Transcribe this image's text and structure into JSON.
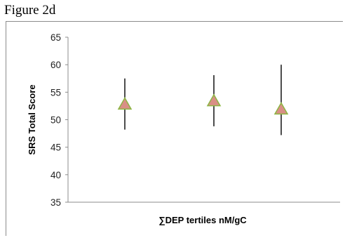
{
  "figure_label": "Figure 2d",
  "chart_data": {
    "type": "scatter",
    "title": "",
    "xlabel": "∑DEP tertiles nM/gC",
    "ylabel": "SRS Total Score",
    "ylim": [
      35,
      65
    ],
    "yticks": [
      35,
      40,
      45,
      50,
      55,
      60,
      65
    ],
    "grid": false,
    "legend": "none",
    "marker": "triangle",
    "colors": {
      "marker_fill": "#d98f86",
      "marker_stroke": "#8db543",
      "error_bar": "#000000",
      "axis": "#8c8c8c"
    },
    "categories": [
      "",
      "",
      ""
    ],
    "points": [
      {
        "y": 52.8,
        "low": 48.2,
        "high": 57.5
      },
      {
        "y": 53.4,
        "low": 48.8,
        "high": 58.1
      },
      {
        "y": 51.9,
        "low": 47.2,
        "high": 60.0
      }
    ]
  }
}
